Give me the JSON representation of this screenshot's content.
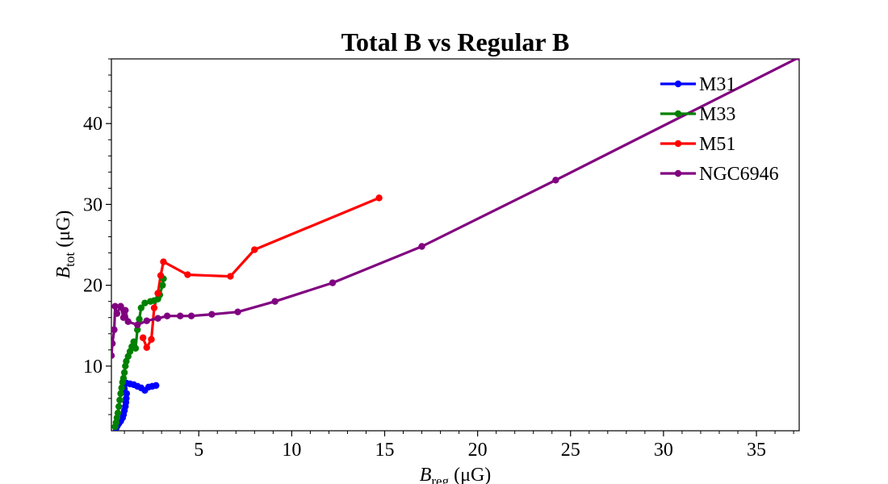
{
  "chart_data": {
    "type": "line",
    "title": "Total B vs Regular B",
    "xlabel": {
      "main": "B",
      "sub": "reg",
      "unit": " (μG)"
    },
    "ylabel": {
      "main": "B",
      "sub": "tot",
      "unit": " (μG)"
    },
    "xlim": [
      0.3,
      37.3
    ],
    "ylim": [
      2,
      48
    ],
    "xticks": [
      5,
      10,
      15,
      20,
      25,
      30,
      35
    ],
    "yticks": [
      10,
      20,
      30,
      40
    ],
    "grid": false,
    "legend": "top-right",
    "series": [
      {
        "name": "M31",
        "color": "#0000ff",
        "points": [
          [
            0.55,
            2.3
          ],
          [
            0.62,
            2.6
          ],
          [
            0.7,
            2.9
          ],
          [
            0.8,
            3.2
          ],
          [
            0.9,
            3.6
          ],
          [
            0.95,
            4.0
          ],
          [
            1.0,
            4.5
          ],
          [
            1.05,
            5.0
          ],
          [
            1.08,
            5.5
          ],
          [
            1.1,
            6.0
          ],
          [
            1.12,
            6.6
          ],
          [
            1.0,
            7.2
          ],
          [
            1.0,
            7.7
          ],
          [
            1.1,
            7.9
          ],
          [
            1.3,
            7.8
          ],
          [
            1.5,
            7.7
          ],
          [
            1.7,
            7.5
          ],
          [
            1.9,
            7.3
          ],
          [
            2.1,
            7.0
          ],
          [
            2.3,
            7.4
          ],
          [
            2.5,
            7.5
          ],
          [
            2.7,
            7.6
          ]
        ]
      },
      {
        "name": "M33",
        "color": "#008000",
        "points": [
          [
            0.5,
            2.5
          ],
          [
            0.55,
            3.0
          ],
          [
            0.6,
            3.6
          ],
          [
            0.65,
            4.2
          ],
          [
            0.7,
            5.0
          ],
          [
            0.75,
            5.8
          ],
          [
            0.8,
            6.6
          ],
          [
            0.85,
            7.3
          ],
          [
            0.9,
            8.0
          ],
          [
            0.95,
            8.5
          ],
          [
            1.0,
            9.2
          ],
          [
            1.05,
            10.0
          ],
          [
            1.1,
            10.6
          ],
          [
            1.2,
            11.2
          ],
          [
            1.3,
            11.8
          ],
          [
            1.4,
            12.4
          ],
          [
            1.5,
            13.0
          ],
          [
            1.6,
            12.2
          ],
          [
            1.7,
            14.5
          ],
          [
            1.8,
            15.8
          ],
          [
            1.9,
            17.2
          ],
          [
            2.1,
            17.8
          ],
          [
            2.4,
            18.0
          ],
          [
            2.6,
            18.1
          ],
          [
            2.8,
            18.3
          ],
          [
            2.9,
            18.8
          ],
          [
            3.05,
            20.0
          ],
          [
            3.1,
            20.8
          ]
        ]
      },
      {
        "name": "M51",
        "color": "#ff0000",
        "points": [
          [
            2.0,
            13.5
          ],
          [
            2.2,
            12.3
          ],
          [
            2.45,
            13.3
          ],
          [
            2.6,
            17.2
          ],
          [
            2.8,
            19.0
          ],
          [
            2.95,
            21.2
          ],
          [
            3.1,
            22.9
          ],
          [
            4.4,
            21.3
          ],
          [
            6.7,
            21.1
          ],
          [
            8.0,
            24.4
          ],
          [
            14.7,
            30.8
          ]
        ]
      },
      {
        "name": "NGC6946",
        "color": "#800080",
        "points": [
          [
            0.3,
            11.3
          ],
          [
            0.35,
            12.8
          ],
          [
            0.45,
            14.5
          ],
          [
            0.5,
            17.4
          ],
          [
            0.6,
            16.5
          ],
          [
            0.8,
            17.4
          ],
          [
            0.95,
            16.0
          ],
          [
            1.05,
            16.9
          ],
          [
            1.2,
            15.5
          ],
          [
            1.7,
            15.1
          ],
          [
            2.2,
            15.6
          ],
          [
            2.8,
            15.9
          ],
          [
            3.3,
            16.2
          ],
          [
            4.0,
            16.2
          ],
          [
            4.6,
            16.2
          ],
          [
            5.7,
            16.4
          ],
          [
            7.1,
            16.7
          ],
          [
            9.1,
            18.0
          ],
          [
            12.2,
            20.3
          ],
          [
            17.0,
            24.8
          ],
          [
            24.2,
            33.0
          ],
          [
            37.3,
            48.2
          ]
        ]
      }
    ]
  }
}
